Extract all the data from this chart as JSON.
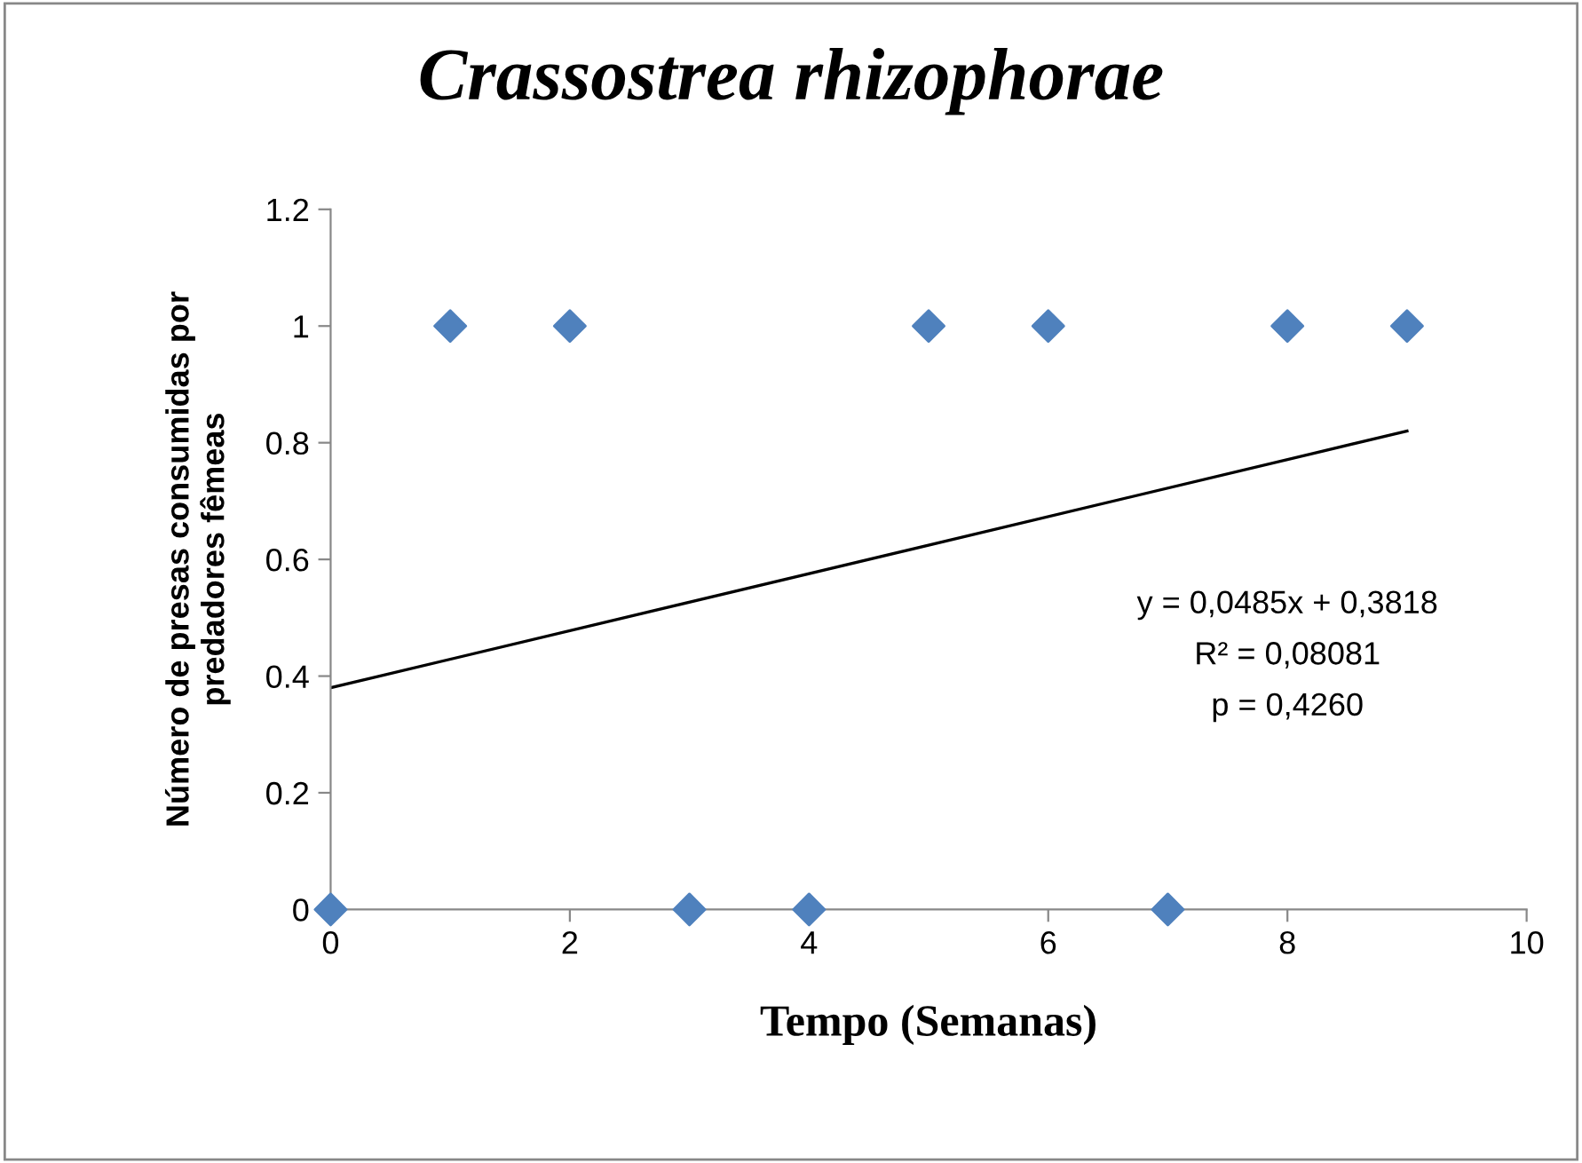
{
  "chart_data": {
    "type": "scatter",
    "title": "Crassostrea rhizophorae",
    "xlabel": "Tempo (Semanas)",
    "ylabel": "Número de presas consumidas por\npredadores fêmeas",
    "series": [
      {
        "color": "#4f81bd",
        "marker": "diamond",
        "x": [
          0,
          1,
          2,
          3,
          4,
          5,
          6,
          7,
          8,
          9
        ],
        "values": [
          0,
          1,
          1,
          0,
          0,
          1,
          1,
          0,
          1,
          1
        ]
      },
      {
        "type": "line",
        "color": "#000000",
        "marker": "none",
        "x": [
          0,
          9
        ],
        "values": [
          0.38,
          0.82
        ]
      }
    ],
    "annotations": [
      "y = 0,0485x + 0,3818",
      "R² = 0,08081",
      "p = 0,4260"
    ],
    "xlim": [
      0,
      10
    ],
    "xticks": [
      0,
      2,
      4,
      6,
      8,
      10
    ],
    "ylim": [
      0,
      1.2
    ],
    "yticks": [
      0,
      0.2,
      0.4,
      0.6,
      0.8,
      1,
      1.2
    ],
    "grid": false,
    "legend": false
  }
}
